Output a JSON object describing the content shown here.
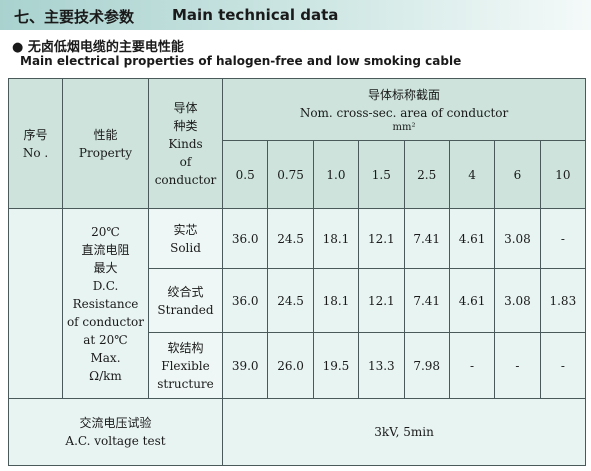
{
  "header": {
    "title_cn": "七、主要技术参数",
    "title_en": "Main technical data"
  },
  "section": {
    "bullet": "●",
    "title_cn": "无卤低烟电缆的主要电性能",
    "title_en": "Main electrical properties of halogen-free and low smoking cable"
  },
  "table": {
    "no_header": [
      "序号",
      "No ."
    ],
    "property_header": [
      "性能",
      "Property"
    ],
    "kinds_header": [
      "导体",
      "种类",
      "Kinds",
      "of",
      "conductor"
    ],
    "area_header": [
      "导体标称截面",
      "Nom. cross-sec. area of conductor",
      "mm²"
    ],
    "sizes": [
      "0.5",
      "0.75",
      "1.0",
      "1.5",
      "2.5",
      "4",
      "6",
      "10"
    ],
    "property": [
      "20℃",
      "直流电阻",
      "最大",
      "D.C.",
      "Resistance",
      "of conductor",
      "at 20℃",
      "Max.",
      "Ω/km"
    ],
    "rows": [
      {
        "kind": [
          "实芯",
          "Solid"
        ],
        "values": [
          "36.0",
          "24.5",
          "18.1",
          "12.1",
          "7.41",
          "4.61",
          "3.08",
          "-"
        ]
      },
      {
        "kind": [
          "绞合式",
          "Stranded"
        ],
        "values": [
          "36.0",
          "24.5",
          "18.1",
          "12.1",
          "7.41",
          "4.61",
          "3.08",
          "1.83"
        ]
      },
      {
        "kind": [
          "软结构",
          "Flexible",
          "structure"
        ],
        "values": [
          "39.0",
          "26.0",
          "19.5",
          "13.3",
          "7.98",
          "-",
          "-",
          "-"
        ]
      }
    ],
    "voltage_label": [
      "交流电压试验",
      "A.C. voltage test"
    ],
    "voltage_value": "3kV, 5min"
  }
}
